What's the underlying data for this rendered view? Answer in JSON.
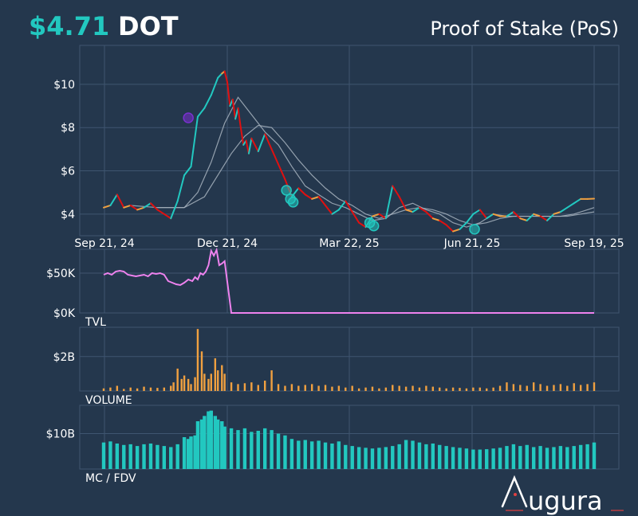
{
  "header": {
    "price": "$4.71",
    "symbol": "DOT",
    "category": "Proof of Stake (PoS)"
  },
  "brand": {
    "name": "ugura"
  },
  "colors": {
    "background": "#24374d",
    "grid": "#3f5570",
    "up": "#22c8c0",
    "down": "#e01010",
    "neutral": "#f0a040",
    "tvl": "#ee82ee",
    "volume": "#f0a040",
    "mcap": "#22c8c0",
    "ma": "#a8b4c0"
  },
  "chart_data": [
    {
      "type": "line",
      "panel": "price",
      "x_ticks": [
        "Sep 21, 24",
        "Dec 21, 24",
        "Mar 22, 25",
        "Jun 21, 25",
        "Sep 19, 25"
      ],
      "y_ticks": [
        "$4",
        "$6",
        "$8",
        "$10"
      ],
      "ylim": [
        3.0,
        11.8
      ],
      "series": [
        {
          "role": "price",
          "x": [
            0,
            5,
            10,
            15,
            20,
            25,
            30,
            35,
            40,
            45,
            50,
            55,
            60,
            65,
            70,
            75,
            80,
            85,
            88,
            90,
            92,
            94,
            96,
            98,
            100,
            102,
            104,
            106,
            108,
            110,
            115,
            120,
            125,
            130,
            135,
            140,
            145,
            150,
            155,
            160,
            165,
            170,
            175,
            180,
            185,
            190,
            195,
            200,
            205,
            210,
            215,
            220,
            225,
            230,
            235,
            240,
            245,
            250,
            255,
            260,
            265,
            270,
            275,
            280,
            285,
            290,
            295,
            300,
            305,
            310,
            315,
            320,
            325,
            330,
            335,
            340,
            345,
            350,
            355,
            360,
            365
          ],
          "y": [
            4.3,
            4.4,
            4.9,
            4.3,
            4.4,
            4.2,
            4.3,
            4.5,
            4.2,
            4.0,
            3.8,
            4.6,
            5.8,
            6.2,
            8.5,
            8.9,
            9.5,
            10.3,
            10.5,
            10.6,
            10.1,
            9.0,
            9.3,
            8.4,
            8.9,
            8.0,
            7.2,
            7.4,
            6.8,
            7.5,
            6.9,
            7.7,
            7.0,
            6.3,
            5.6,
            4.8,
            5.2,
            4.9,
            4.7,
            4.8,
            4.4,
            4.0,
            4.2,
            4.6,
            4.1,
            3.6,
            3.4,
            3.9,
            4.0,
            3.8,
            5.3,
            4.8,
            4.2,
            4.1,
            4.3,
            4.1,
            3.8,
            3.7,
            3.5,
            3.2,
            3.3,
            3.6,
            4.0,
            4.2,
            3.8,
            4.0,
            3.9,
            3.9,
            4.1,
            3.8,
            3.7,
            4.0,
            3.9,
            3.7,
            4.0,
            4.1,
            4.3,
            4.5,
            4.7,
            4.7,
            4.71
          ]
        },
        {
          "role": "ma-short",
          "x": [
            20,
            40,
            60,
            70,
            80,
            90,
            100,
            110,
            120,
            130,
            140,
            150,
            160,
            170,
            180,
            190,
            200,
            210,
            220,
            230,
            240,
            250,
            260,
            270,
            280,
            290,
            300,
            310,
            320,
            330,
            340,
            350,
            360,
            365
          ],
          "y": [
            4.4,
            4.3,
            4.3,
            5.0,
            6.4,
            8.2,
            9.4,
            8.6,
            7.8,
            7.2,
            6.2,
            5.3,
            4.9,
            4.5,
            4.3,
            4.0,
            3.7,
            3.8,
            4.3,
            4.5,
            4.2,
            4.0,
            3.6,
            3.4,
            3.6,
            4.0,
            3.9,
            3.9,
            3.9,
            3.9,
            3.9,
            4.0,
            4.2,
            4.3
          ]
        },
        {
          "role": "ma-long",
          "x": [
            40,
            60,
            75,
            85,
            95,
            105,
            115,
            125,
            135,
            145,
            155,
            165,
            175,
            185,
            195,
            205,
            215,
            225,
            235,
            245,
            255,
            265,
            275,
            285,
            295,
            305,
            315,
            325,
            335,
            345,
            355,
            365
          ],
          "y": [
            4.3,
            4.3,
            4.8,
            5.8,
            6.8,
            7.6,
            8.1,
            8.0,
            7.3,
            6.5,
            5.8,
            5.2,
            4.7,
            4.4,
            4.0,
            3.8,
            4.0,
            4.2,
            4.3,
            4.2,
            4.0,
            3.7,
            3.5,
            3.6,
            3.8,
            3.9,
            3.9,
            3.9,
            3.9,
            3.9,
            4.0,
            4.1
          ]
        }
      ],
      "markers": [
        {
          "x": 63,
          "y": 8.45,
          "color": "#7a30d0"
        },
        {
          "x": 136,
          "y": 5.1,
          "color": "#22c8c0"
        },
        {
          "x": 139,
          "y": 4.7,
          "color": "#22c8c0"
        },
        {
          "x": 141,
          "y": 4.55,
          "color": "#22c8c0"
        },
        {
          "x": 198,
          "y": 3.6,
          "color": "#22c8c0"
        },
        {
          "x": 201,
          "y": 3.45,
          "color": "#22c8c0"
        },
        {
          "x": 276,
          "y": 3.3,
          "color": "#22c8c0"
        }
      ]
    },
    {
      "type": "line",
      "panel": "tvl",
      "label": "TVL",
      "y_ticks": [
        "$0K",
        "$50K"
      ],
      "ylim": [
        0,
        80000
      ],
      "x": [
        0,
        3,
        6,
        9,
        12,
        15,
        18,
        21,
        24,
        27,
        30,
        33,
        36,
        39,
        42,
        45,
        48,
        51,
        54,
        57,
        60,
        63,
        66,
        68,
        70,
        72,
        74,
        76,
        78,
        80,
        82,
        84,
        86,
        88,
        90,
        95,
        100,
        150,
        200,
        250,
        300,
        365
      ],
      "y": [
        48000,
        50000,
        48000,
        52000,
        53000,
        52000,
        48000,
        47000,
        46000,
        47000,
        48000,
        46000,
        50000,
        49000,
        50000,
        48000,
        40000,
        38000,
        36000,
        35000,
        38000,
        42000,
        40000,
        45000,
        42000,
        50000,
        48000,
        52000,
        60000,
        78000,
        72000,
        79000,
        60000,
        62000,
        65000,
        0,
        0,
        0,
        0,
        0,
        0,
        0
      ]
    },
    {
      "type": "bar",
      "panel": "volume",
      "label": "VOLUME",
      "y_ticks": [
        "$2B"
      ],
      "ylim": [
        0,
        3.7
      ],
      "x": [
        0,
        5,
        10,
        15,
        20,
        25,
        30,
        35,
        40,
        45,
        50,
        52,
        55,
        58,
        60,
        63,
        65,
        68,
        70,
        73,
        75,
        78,
        80,
        83,
        85,
        88,
        90,
        95,
        100,
        105,
        110,
        115,
        120,
        125,
        130,
        135,
        140,
        145,
        150,
        155,
        160,
        165,
        170,
        175,
        180,
        185,
        190,
        195,
        200,
        205,
        210,
        215,
        220,
        225,
        230,
        235,
        240,
        245,
        250,
        255,
        260,
        265,
        270,
        275,
        280,
        285,
        290,
        295,
        300,
        305,
        310,
        315,
        320,
        325,
        330,
        335,
        340,
        345,
        350,
        355,
        360,
        365
      ],
      "y": [
        0.15,
        0.2,
        0.3,
        0.12,
        0.2,
        0.15,
        0.25,
        0.2,
        0.18,
        0.2,
        0.3,
        0.5,
        1.3,
        0.7,
        0.9,
        0.7,
        0.4,
        0.8,
        3.6,
        2.3,
        1.0,
        0.7,
        1.0,
        1.9,
        1.2,
        1.5,
        1.0,
        0.5,
        0.4,
        0.45,
        0.5,
        0.35,
        0.6,
        1.2,
        0.4,
        0.3,
        0.4,
        0.3,
        0.35,
        0.4,
        0.3,
        0.35,
        0.25,
        0.3,
        0.2,
        0.3,
        0.15,
        0.2,
        0.25,
        0.15,
        0.2,
        0.35,
        0.3,
        0.25,
        0.3,
        0.2,
        0.3,
        0.25,
        0.2,
        0.15,
        0.2,
        0.18,
        0.15,
        0.2,
        0.2,
        0.15,
        0.2,
        0.3,
        0.5,
        0.4,
        0.35,
        0.3,
        0.5,
        0.4,
        0.3,
        0.35,
        0.4,
        0.3,
        0.45,
        0.35,
        0.4,
        0.5
      ]
    },
    {
      "type": "bar",
      "panel": "mcap",
      "label": "MC / FDV",
      "y_ticks": [
        "$10B"
      ],
      "ylim": [
        0,
        18
      ],
      "x": [
        0,
        5,
        10,
        15,
        20,
        25,
        30,
        35,
        40,
        45,
        50,
        55,
        60,
        63,
        65,
        68,
        70,
        73,
        75,
        78,
        80,
        83,
        85,
        88,
        90,
        95,
        100,
        105,
        110,
        115,
        120,
        125,
        130,
        135,
        140,
        145,
        150,
        155,
        160,
        165,
        170,
        175,
        180,
        185,
        190,
        195,
        200,
        205,
        210,
        215,
        220,
        225,
        230,
        235,
        240,
        245,
        250,
        255,
        260,
        265,
        270,
        275,
        280,
        285,
        290,
        295,
        300,
        305,
        310,
        315,
        320,
        325,
        330,
        335,
        340,
        345,
        350,
        355,
        360,
        365
      ],
      "y": [
        7.5,
        7.8,
        7.2,
        6.8,
        7.0,
        6.5,
        7.0,
        7.2,
        6.8,
        6.5,
        6.2,
        7.0,
        9.0,
        8.5,
        9.2,
        9.5,
        13.5,
        14.0,
        15.0,
        16.3,
        16.5,
        15.0,
        14.0,
        13.5,
        12.0,
        11.5,
        11.0,
        11.5,
        10.5,
        10.8,
        11.5,
        11.0,
        10.0,
        9.5,
        8.5,
        8.0,
        8.2,
        7.8,
        8.0,
        7.5,
        7.2,
        7.8,
        6.8,
        6.5,
        6.2,
        6.0,
        5.8,
        6.0,
        6.2,
        6.5,
        7.0,
        8.2,
        8.0,
        7.5,
        7.0,
        7.2,
        6.8,
        6.5,
        6.2,
        6.0,
        5.8,
        5.5,
        5.5,
        5.6,
        5.8,
        6.0,
        6.5,
        7.0,
        6.5,
        6.8,
        6.2,
        6.5,
        6.0,
        6.2,
        6.5,
        6.2,
        6.5,
        6.8,
        7.0,
        7.5
      ]
    }
  ]
}
